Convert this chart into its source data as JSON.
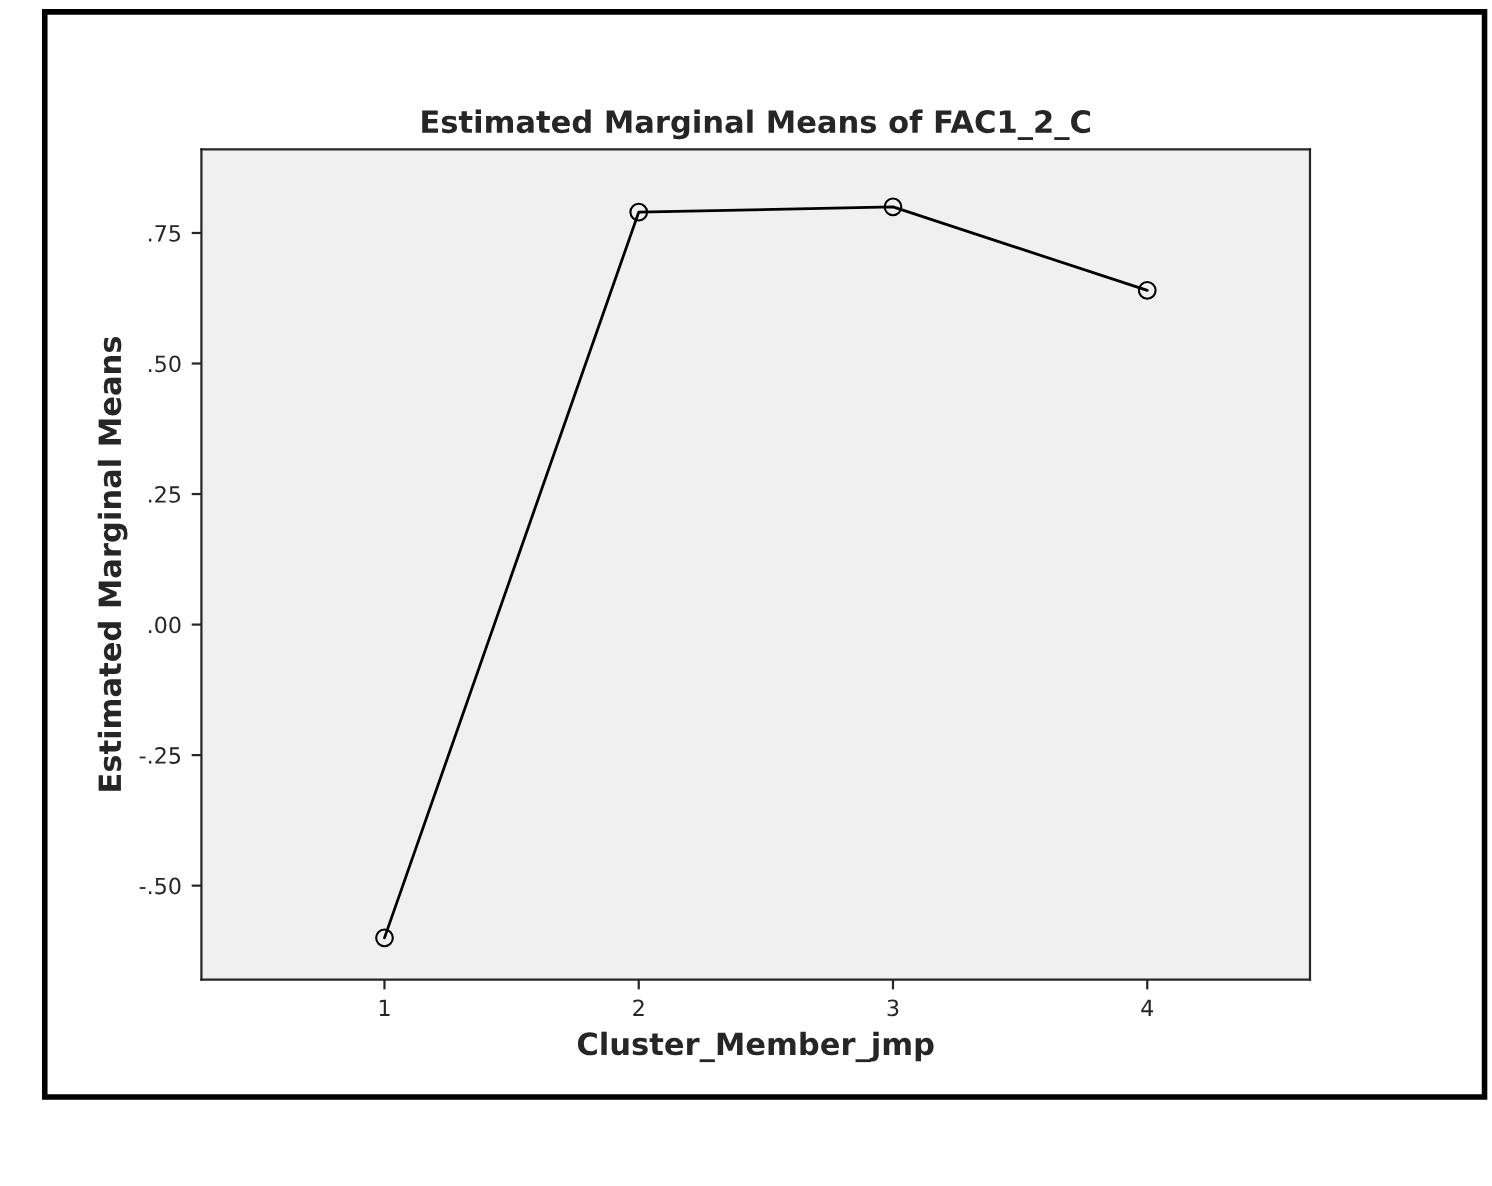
{
  "chart_data": {
    "type": "line",
    "title": "Estimated Marginal Means of FAC1_2_C",
    "xlabel": "Cluster_Member_jmp",
    "ylabel": "Estimated Marginal Means",
    "x": [
      1,
      2,
      3,
      4
    ],
    "series": [
      {
        "color": "#000000",
        "values": [
          -0.6,
          0.79,
          0.8,
          0.64
        ]
      }
    ],
    "xlim": [
      0.28,
      4.64
    ],
    "xticks": [
      1,
      2,
      3,
      4
    ],
    "ylim": [
      -0.68,
      0.91
    ],
    "yticks": [
      {
        "value": -0.5,
        "label": "-.50"
      },
      {
        "value": -0.25,
        "label": "-.25"
      },
      {
        "value": 0,
        "label": ".00"
      },
      {
        "value": 0.25,
        "label": ".25"
      },
      {
        "value": 0.5,
        "label": ".50"
      },
      {
        "value": 0.75,
        "label": ".75"
      }
    ],
    "marker": "circle",
    "line_style": "solid",
    "grid": false,
    "legend": false
  }
}
